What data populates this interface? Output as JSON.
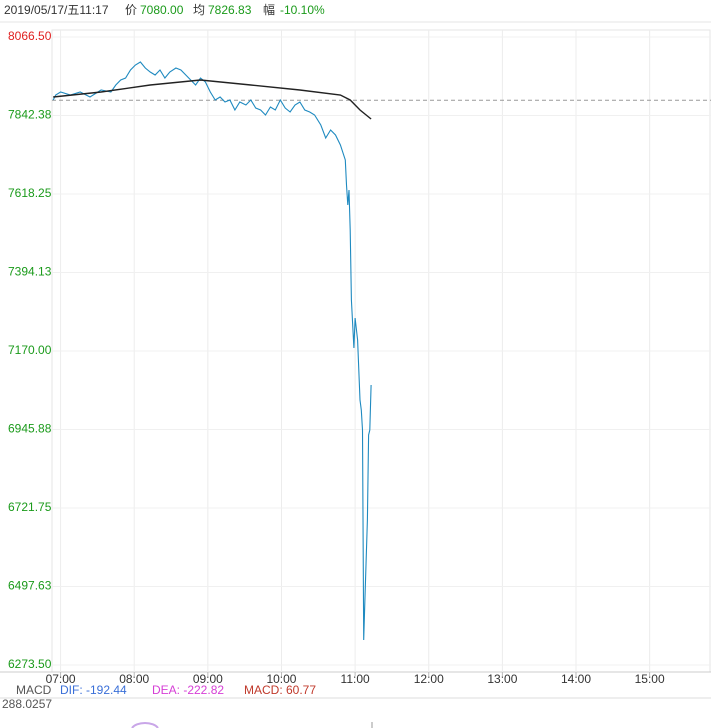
{
  "chart_data": {
    "type": "line",
    "header": {
      "date": "2019/05/17/五11:17",
      "price_label": "价",
      "price": "7080.00",
      "avg_label": "均",
      "avg": "7826.83",
      "change_label": "幅",
      "change": "-10.10%"
    },
    "macd": {
      "name": "MACD",
      "dif": "DIF: -192.44",
      "dea": "DEA: -222.82",
      "macd": "MACD: 60.77",
      "scale": "288.0257"
    },
    "xlim": [
      413,
      950
    ],
    "xticks": [
      {
        "value": 420,
        "label": "07:00"
      },
      {
        "value": 480,
        "label": "08:00"
      },
      {
        "value": 540,
        "label": "09:00"
      },
      {
        "value": 600,
        "label": "10:00"
      },
      {
        "value": 660,
        "label": "11:00"
      },
      {
        "value": 720,
        "label": "12:00"
      },
      {
        "value": 780,
        "label": "13:00"
      },
      {
        "value": 840,
        "label": "14:00"
      },
      {
        "value": 900,
        "label": "15:00"
      }
    ],
    "ylim": [
      6273.5,
      8066.5
    ],
    "yticks": [
      {
        "value": 8066.5,
        "label": "8066.50"
      },
      {
        "value": 7842.38,
        "label": "7842.38"
      },
      {
        "value": 7618.25,
        "label": "7618.25"
      },
      {
        "value": 7394.13,
        "label": "7394.13"
      },
      {
        "value": 7170,
        "label": "7170.00"
      },
      {
        "value": 6945.88,
        "label": "6945.88"
      },
      {
        "value": 6721.75,
        "label": "6721.75"
      },
      {
        "value": 6497.63,
        "label": "6497.63"
      },
      {
        "value": 6273.5,
        "label": "6273.50"
      }
    ],
    "grid": true,
    "reference_line": 7886,
    "up_color": "#e02020",
    "down_color": "#1a9a1a",
    "series": [
      {
        "color": "#1f8ac0",
        "x": [
          414,
          416,
          420,
          428,
          436,
          444,
          453,
          461,
          465,
          469,
          473,
          477,
          481,
          485,
          489,
          493,
          497,
          501,
          505,
          509,
          514,
          518,
          522,
          526,
          530,
          534,
          538,
          542,
          546,
          550,
          554,
          558,
          562,
          566,
          571,
          575,
          579,
          583,
          587,
          591,
          595,
          599,
          603,
          607,
          611,
          615,
          619,
          623,
          627,
          632,
          636,
          640,
          644,
          648,
          652,
          653,
          654,
          655,
          656,
          657,
          659,
          660,
          662,
          664,
          665,
          666,
          667,
          668,
          670,
          671,
          672,
          673
        ],
        "values": [
          7886.6,
          7900.9,
          7909.5,
          7900.9,
          7909.5,
          7895.2,
          7915.2,
          7909.5,
          7929.5,
          7943.7,
          7949.4,
          7972.3,
          7986.6,
          7995.1,
          7978.0,
          7966.6,
          7958.0,
          7972.3,
          7949.4,
          7966.6,
          7978.0,
          7972.3,
          7958.0,
          7943.7,
          7929.5,
          7949.4,
          7937.9,
          7909.5,
          7886.6,
          7895.2,
          7880.9,
          7886.6,
          7858.1,
          7880.9,
          7872.4,
          7886.6,
          7863.8,
          7858.1,
          7843.8,
          7866.7,
          7858.1,
          7886.6,
          7863.8,
          7852.4,
          7872.4,
          7880.9,
          7858.1,
          7852.4,
          7843.8,
          7815.3,
          7778.1,
          7801.0,
          7786.7,
          7758.2,
          7715.3,
          7643.9,
          7586.8,
          7629.7,
          7515.5,
          7315.6,
          7178.6,
          7264.3,
          7201.4,
          7030.1,
          7001.6,
          6944.5,
          6344.9,
          6459.1,
          6687.5,
          6930.2,
          6944.5,
          7073.0
        ]
      },
      {
        "color": "#222222",
        "x": [
          414,
          453,
          493,
          534,
          575,
          615,
          648,
          656,
          664,
          673
        ],
        "values": [
          7895.2,
          7909.5,
          7929.5,
          7943.7,
          7929.5,
          7915.2,
          7900.9,
          7886.6,
          7858.1,
          7832.4
        ]
      }
    ]
  }
}
